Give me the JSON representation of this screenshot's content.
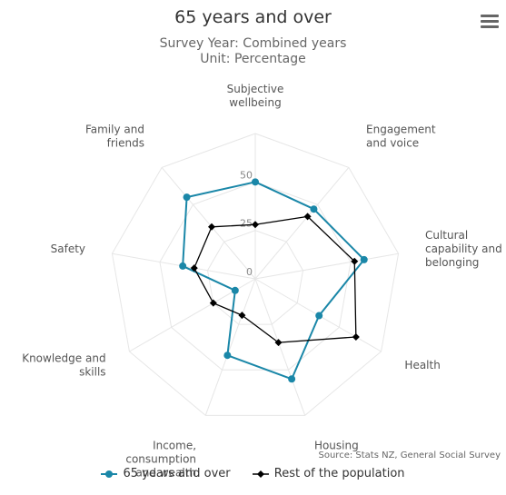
{
  "header": {
    "title": "65 years and over",
    "subtitle1": "Survey Year: Combined years",
    "subtitle2": "Unit: Percentage"
  },
  "source": "Source: Stats NZ, General Social Survey",
  "colors": {
    "series1": "#1a87a8",
    "series2": "#000000",
    "grid": "#e6e6e6"
  },
  "icons": {
    "menu": "hamburger-menu-icon"
  },
  "chart_data": {
    "type": "radar",
    "categories": [
      [
        "Subjective",
        "wellbeing"
      ],
      [
        "Engagement",
        "and voice"
      ],
      [
        "Cultural",
        "capability and",
        "belonging"
      ],
      [
        "Health"
      ],
      [
        "Housing"
      ],
      [
        "Income,",
        "consumption",
        "and wealth"
      ],
      [
        "Knowledge and",
        "skills"
      ],
      [
        "Safety"
      ],
      [
        "Family and",
        "friends"
      ]
    ],
    "rlim": [
      0,
      75
    ],
    "ticks": [
      0,
      25,
      50
    ],
    "series": [
      {
        "name": "65 years and over",
        "marker": "circle",
        "values": [
          50,
          47,
          57,
          38,
          55,
          42,
          12,
          38,
          55
        ]
      },
      {
        "name": "Rest of the population",
        "marker": "diamond",
        "values": [
          28,
          42,
          52,
          60,
          35,
          20,
          25,
          32,
          35
        ]
      }
    ],
    "legend_position": "bottom"
  }
}
